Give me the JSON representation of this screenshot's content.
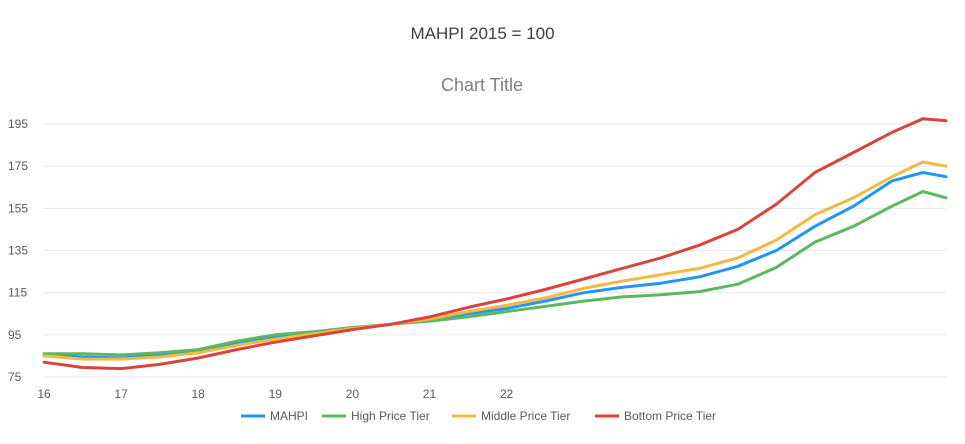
{
  "heading": "MAHPI 2015 = 100",
  "chart_data": {
    "type": "line",
    "title": "Chart Title",
    "xlabel": "",
    "ylabel": "",
    "ylim": [
      75,
      200
    ],
    "yticks": [
      75,
      95,
      115,
      135,
      155,
      175,
      195
    ],
    "xlim": [
      16,
      27.7
    ],
    "xticks": [
      16,
      17,
      18,
      19,
      20,
      21,
      22
    ],
    "grid": true,
    "legend": "bottom",
    "series": [
      {
        "name": "MAHPI",
        "color": "#2196f3",
        "x": [
          16,
          16.5,
          17,
          17.5,
          18,
          18.5,
          19,
          19.5,
          20,
          20.5,
          21,
          21.5,
          22,
          22.5,
          23,
          23.5,
          24,
          24.5,
          25,
          25.5,
          26,
          26.5,
          27,
          27.4,
          27.7
        ],
        "y": [
          85.5,
          84.5,
          84,
          85.5,
          87.5,
          91,
          94,
          96,
          98,
          100,
          102.5,
          105,
          107.5,
          111,
          115,
          117.5,
          119.5,
          122.5,
          127.5,
          135,
          146.5,
          156,
          168,
          172,
          170
        ]
      },
      {
        "name": "High Price Tier",
        "color": "#5cb85c",
        "x": [
          16,
          16.5,
          17,
          17.5,
          18,
          18.5,
          19,
          19.5,
          20,
          20.5,
          21,
          21.5,
          22,
          22.5,
          23,
          23.5,
          24,
          24.5,
          25,
          25.5,
          26,
          26.5,
          27,
          27.4,
          27.7
        ],
        "y": [
          86,
          86,
          85.5,
          86.5,
          88,
          92,
          95,
          96.5,
          98.5,
          100,
          101.5,
          103.5,
          106,
          108.5,
          111,
          113,
          114,
          115.5,
          119,
          127,
          139,
          146.5,
          156,
          163,
          160
        ]
      },
      {
        "name": "Middle Price Tier",
        "color": "#f4b942",
        "x": [
          16,
          16.5,
          17,
          17.5,
          18,
          18.5,
          19,
          19.5,
          20,
          20.5,
          21,
          21.5,
          22,
          22.5,
          23,
          23.5,
          24,
          24.5,
          25,
          25.5,
          26,
          26.5,
          27,
          27.4,
          27.7
        ],
        "y": [
          85,
          83.5,
          83.5,
          84.5,
          86.5,
          90,
          93,
          95.5,
          98,
          100,
          102.5,
          106,
          109,
          112.5,
          117,
          120.5,
          123.5,
          126.5,
          131.5,
          140,
          152,
          160,
          170,
          177,
          175
        ]
      },
      {
        "name": "Bottom Price Tier",
        "color": "#d9453d",
        "x": [
          16,
          16.5,
          17,
          17.5,
          18,
          18.5,
          19,
          19.5,
          20,
          20.5,
          21,
          21.5,
          22,
          22.5,
          23,
          23.5,
          24,
          24.5,
          25,
          25.5,
          26,
          26.5,
          27,
          27.4,
          27.7
        ],
        "y": [
          82,
          79.5,
          79,
          81,
          84,
          88,
          91.5,
          94.5,
          97.5,
          100,
          103.5,
          108,
          112,
          116.5,
          121.5,
          126.5,
          131.5,
          137.5,
          145,
          157,
          172,
          181.5,
          191,
          197.5,
          196.5
        ]
      }
    ]
  }
}
